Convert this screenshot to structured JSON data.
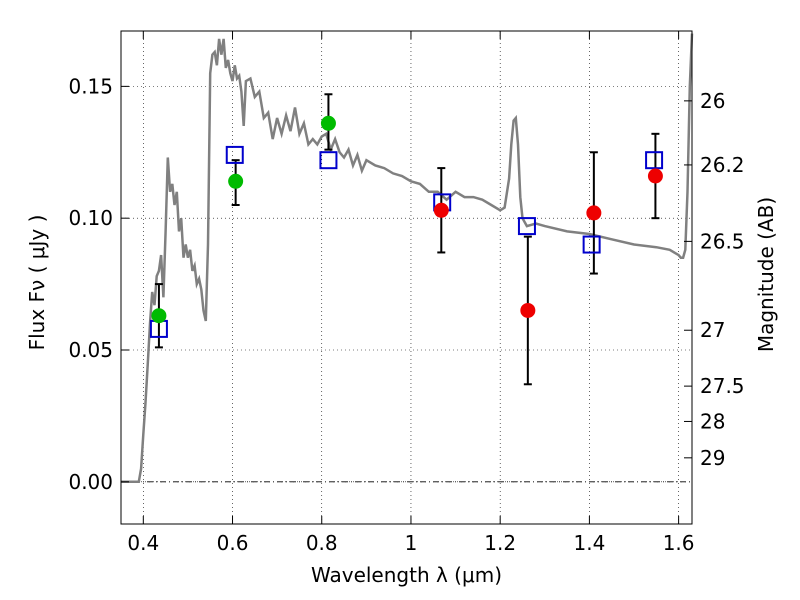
{
  "chart_data": {
    "type": "scatter",
    "xlabel": "Wavelength  λ (μm)",
    "ylabel": "Flux  Fν  ( μJy )",
    "ylabel_right": "Magnitude (AB)",
    "xlim": [
      0.35,
      1.63
    ],
    "ylim": [
      -0.016,
      0.171
    ],
    "x_ticks": [
      0.4,
      0.6,
      0.8,
      1.0,
      1.2,
      1.4,
      1.6
    ],
    "x_tick_labels": [
      "0.4",
      "0.6",
      "0.8",
      "1",
      "1.2",
      "1.4",
      "1.6"
    ],
    "y_ticks": [
      0.0,
      0.05,
      0.1,
      0.15
    ],
    "y_tick_labels": [
      "0.00",
      "0.05",
      "0.10",
      "0.15"
    ],
    "mag_ticks": [
      {
        "label": "26",
        "flux": 0.1445
      },
      {
        "label": "26.2",
        "flux": 0.1202
      },
      {
        "label": "26.5",
        "flux": 0.0912
      },
      {
        "label": "27",
        "flux": 0.0575
      },
      {
        "label": "27.5",
        "flux": 0.0363
      },
      {
        "label": "28",
        "flux": 0.0229
      },
      {
        "label": "29",
        "flux": 0.0091
      }
    ],
    "grid": true,
    "colors": {
      "model": "#808080",
      "model_photometry": "#0000cc",
      "detection_green": "#00bb00",
      "detection_red": "#ee0000",
      "errorbar": "#000000"
    },
    "series": [
      {
        "kind": "line",
        "x": [
          0.35,
          0.39,
          0.395,
          0.4,
          0.405,
          0.41,
          0.415,
          0.42,
          0.425,
          0.43,
          0.435,
          0.44,
          0.445,
          0.45,
          0.455,
          0.46,
          0.465,
          0.47,
          0.475,
          0.48,
          0.485,
          0.49,
          0.495,
          0.5,
          0.505,
          0.51,
          0.515,
          0.52,
          0.525,
          0.53,
          0.535,
          0.54,
          0.545,
          0.55,
          0.555,
          0.56,
          0.565,
          0.57,
          0.575,
          0.58,
          0.585,
          0.59,
          0.595,
          0.6,
          0.605,
          0.61,
          0.615,
          0.62,
          0.625,
          0.63,
          0.64,
          0.65,
          0.66,
          0.67,
          0.68,
          0.69,
          0.7,
          0.71,
          0.72,
          0.73,
          0.74,
          0.75,
          0.76,
          0.77,
          0.78,
          0.79,
          0.8,
          0.81,
          0.82,
          0.83,
          0.84,
          0.85,
          0.86,
          0.87,
          0.88,
          0.89,
          0.9,
          0.92,
          0.94,
          0.96,
          0.98,
          1.0,
          1.02,
          1.04,
          1.06,
          1.08,
          1.1,
          1.12,
          1.14,
          1.16,
          1.18,
          1.2,
          1.21,
          1.22,
          1.225,
          1.23,
          1.235,
          1.24,
          1.245,
          1.25,
          1.26,
          1.28,
          1.3,
          1.35,
          1.4,
          1.45,
          1.5,
          1.55,
          1.58,
          1.6,
          1.605,
          1.61,
          1.615,
          1.62,
          1.625,
          1.63
        ],
        "y": [
          0.0,
          0.0,
          0.005,
          0.018,
          0.03,
          0.045,
          0.06,
          0.072,
          0.067,
          0.078,
          0.08,
          0.086,
          0.07,
          0.095,
          0.123,
          0.11,
          0.113,
          0.105,
          0.11,
          0.095,
          0.1,
          0.085,
          0.09,
          0.085,
          0.088,
          0.08,
          0.082,
          0.075,
          0.077,
          0.073,
          0.065,
          0.061,
          0.09,
          0.155,
          0.162,
          0.163,
          0.158,
          0.168,
          0.162,
          0.168,
          0.157,
          0.16,
          0.155,
          0.152,
          0.158,
          0.153,
          0.154,
          0.148,
          0.135,
          0.152,
          0.153,
          0.146,
          0.148,
          0.138,
          0.14,
          0.13,
          0.138,
          0.132,
          0.139,
          0.133,
          0.142,
          0.132,
          0.136,
          0.128,
          0.13,
          0.128,
          0.131,
          0.132,
          0.126,
          0.13,
          0.125,
          0.123,
          0.126,
          0.12,
          0.124,
          0.118,
          0.122,
          0.12,
          0.119,
          0.117,
          0.116,
          0.114,
          0.113,
          0.11,
          0.11,
          0.107,
          0.11,
          0.108,
          0.108,
          0.107,
          0.105,
          0.103,
          0.104,
          0.115,
          0.128,
          0.137,
          0.138,
          0.128,
          0.108,
          0.1,
          0.097,
          0.098,
          0.097,
          0.095,
          0.094,
          0.092,
          0.09,
          0.089,
          0.088,
          0.086,
          0.085,
          0.085,
          0.088,
          0.11,
          0.15,
          0.17
        ]
      },
      {
        "kind": "open-square",
        "x": [
          0.435,
          0.605,
          0.815,
          1.07,
          1.26,
          1.405,
          1.545
        ],
        "y": [
          0.058,
          0.124,
          0.122,
          0.106,
          0.097,
          0.09,
          0.122
        ]
      },
      {
        "kind": "filled-circle-green",
        "x": [
          0.435,
          0.607,
          0.815
        ],
        "y": [
          0.063,
          0.114,
          0.136
        ],
        "yerr_low": [
          0.051,
          0.105,
          0.126
        ],
        "yerr_high": [
          0.075,
          0.122,
          0.147
        ]
      },
      {
        "kind": "filled-circle-red",
        "x": [
          1.068,
          1.262,
          1.41,
          1.548
        ],
        "y": [
          0.103,
          0.065,
          0.102,
          0.116
        ],
        "yerr_low": [
          0.087,
          0.037,
          0.079,
          0.1
        ],
        "yerr_high": [
          0.119,
          0.093,
          0.125,
          0.132
        ]
      }
    ]
  }
}
